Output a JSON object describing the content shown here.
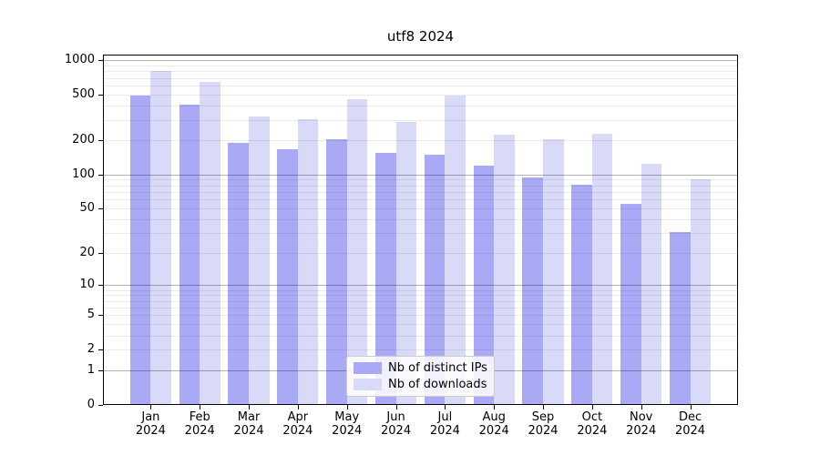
{
  "chart_data": {
    "type": "bar",
    "title": "utf8 2024",
    "categories": [
      "Jan",
      "Feb",
      "Mar",
      "Apr",
      "May",
      "Jun",
      "Jul",
      "Aug",
      "Sep",
      "Oct",
      "Nov",
      "Dec"
    ],
    "category_year": "2024",
    "series": [
      {
        "name": "Nb of distinct IPs",
        "color": "#a9a9f6",
        "values": [
          490,
          410,
          190,
          167,
          205,
          155,
          150,
          120,
          95,
          81,
          55,
          31
        ]
      },
      {
        "name": "Nb of downloads",
        "color": "#d9d9f8",
        "values": [
          800,
          640,
          320,
          305,
          460,
          290,
          490,
          225,
          205,
          228,
          125,
          90
        ]
      }
    ],
    "yscale": "log1p",
    "y_ticks": [
      0,
      1,
      2,
      5,
      10,
      20,
      50,
      100,
      200,
      500,
      1000
    ],
    "y_minor_gridlines": [
      2,
      3,
      4,
      5,
      6,
      7,
      8,
      9,
      20,
      30,
      40,
      50,
      60,
      70,
      80,
      90,
      200,
      300,
      400,
      500,
      600,
      700,
      800,
      900
    ],
    "y_major_gridlines": [
      1,
      10,
      100,
      1000
    ],
    "ylim": [
      0,
      1100
    ],
    "xlabel": "",
    "ylabel": "",
    "grid": "on",
    "legend_position": "lower center"
  },
  "colors": {
    "bar_dark": "#a9a9f6",
    "bar_light": "#d9d9f8",
    "axis": "#000000",
    "legend_border": "#cccccc"
  }
}
